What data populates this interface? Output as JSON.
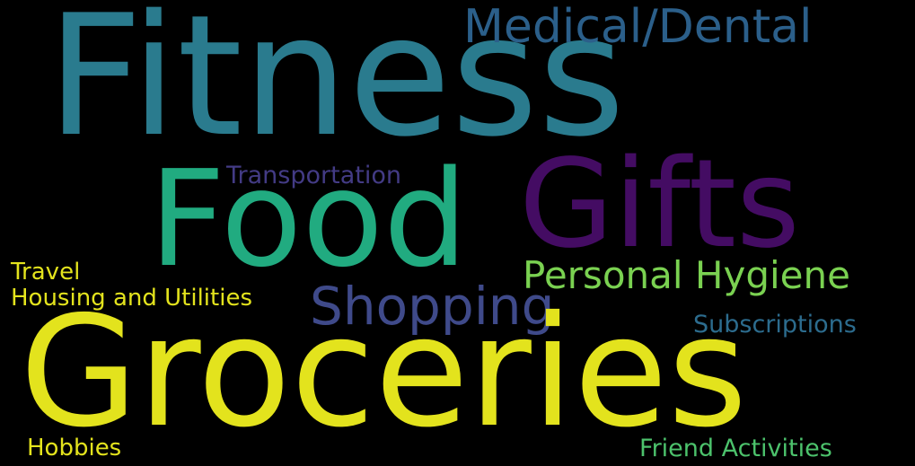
{
  "background": "#000000",
  "words": [
    {
      "id": "fitness",
      "text": "Fitness",
      "color": "#2a7b8e"
    },
    {
      "id": "medical",
      "text": "Medical/Dental",
      "color": "#2b5f8a"
    },
    {
      "id": "transport",
      "text": "Transportation",
      "color": "#433b85"
    },
    {
      "id": "food",
      "text": "Food",
      "color": "#21ab80"
    },
    {
      "id": "gifts",
      "text": "Gifts",
      "color": "#440c63"
    },
    {
      "id": "travel",
      "text": "Travel",
      "color": "#e3e31d"
    },
    {
      "id": "housing",
      "text": "Housing and Utilities",
      "color": "#e3e31d"
    },
    {
      "id": "personal",
      "text": "Personal Hygiene",
      "color": "#7ad151"
    },
    {
      "id": "shopping",
      "text": "Shopping",
      "color": "#3f4a8a"
    },
    {
      "id": "subscriptions",
      "text": "Subscriptions",
      "color": "#2c6c8e"
    },
    {
      "id": "groceries",
      "text": "Groceries",
      "color": "#e3e31d"
    },
    {
      "id": "hobbies",
      "text": "Hobbies",
      "color": "#e3e31d"
    },
    {
      "id": "friend",
      "text": "Friend Activities",
      "color": "#4cc26c"
    }
  ]
}
